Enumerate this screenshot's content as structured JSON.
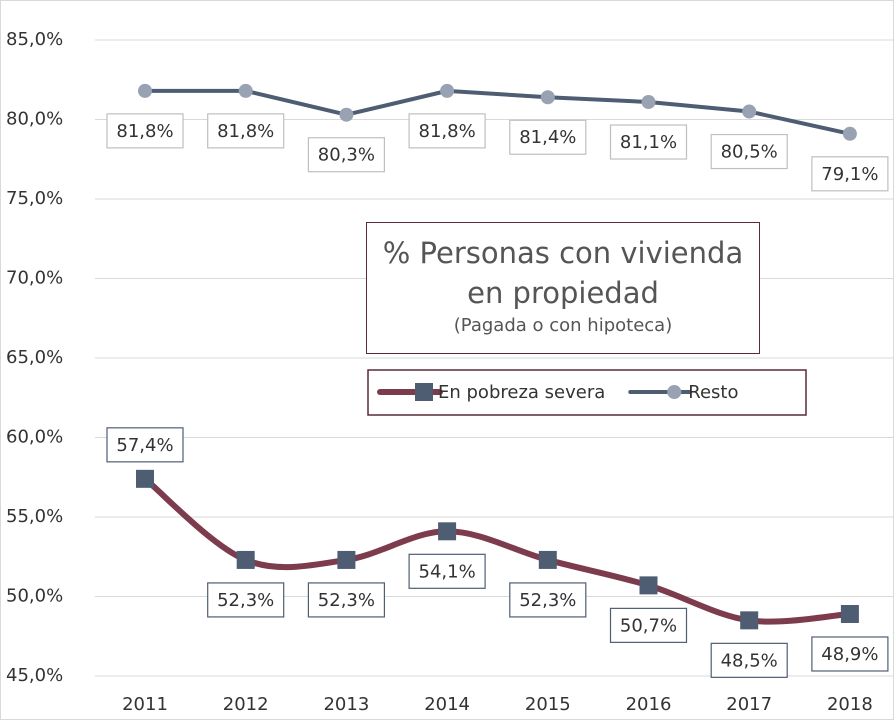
{
  "chart_data": {
    "type": "line",
    "title": "% Personas con vivienda en propiedad",
    "subtitle": "(Pagada o con hipoteca)",
    "categories": [
      "2011",
      "2012",
      "2013",
      "2014",
      "2015",
      "2016",
      "2017",
      "2018"
    ],
    "series": [
      {
        "name": "En pobreza severa",
        "color": "#7d3c4d",
        "marker_color": "#4f5d73",
        "marker": "square",
        "smooth": true,
        "values": [
          57.4,
          52.3,
          52.3,
          54.1,
          52.3,
          50.7,
          48.5,
          48.9
        ],
        "value_labels": [
          "57,4%",
          "52,3%",
          "52,3%",
          "54,1%",
          "52,3%",
          "50,7%",
          "48,5%",
          "48,9%"
        ]
      },
      {
        "name": "Resto",
        "color": "#4f5d73",
        "marker_color": "#98a2b3",
        "marker": "circle",
        "smooth": false,
        "values": [
          81.8,
          81.8,
          80.3,
          81.8,
          81.4,
          81.1,
          80.5,
          79.1
        ],
        "value_labels": [
          "81,8%",
          "81,8%",
          "80,3%",
          "81,8%",
          "81,4%",
          "81,1%",
          "80,5%",
          "79,1%"
        ]
      }
    ],
    "ylim": [
      45,
      85
    ],
    "yticks": [
      {
        "value": 45,
        "label": "45,0%"
      },
      {
        "value": 50,
        "label": "50,0%"
      },
      {
        "value": 55,
        "label": "55,0%"
      },
      {
        "value": 60,
        "label": "60,0%"
      },
      {
        "value": 65,
        "label": "65,0%"
      },
      {
        "value": 70,
        "label": "70,0%"
      },
      {
        "value": 75,
        "label": "75,0%"
      },
      {
        "value": 80,
        "label": "80,0%"
      },
      {
        "value": 85,
        "label": "85,0%"
      }
    ],
    "grid": true
  }
}
